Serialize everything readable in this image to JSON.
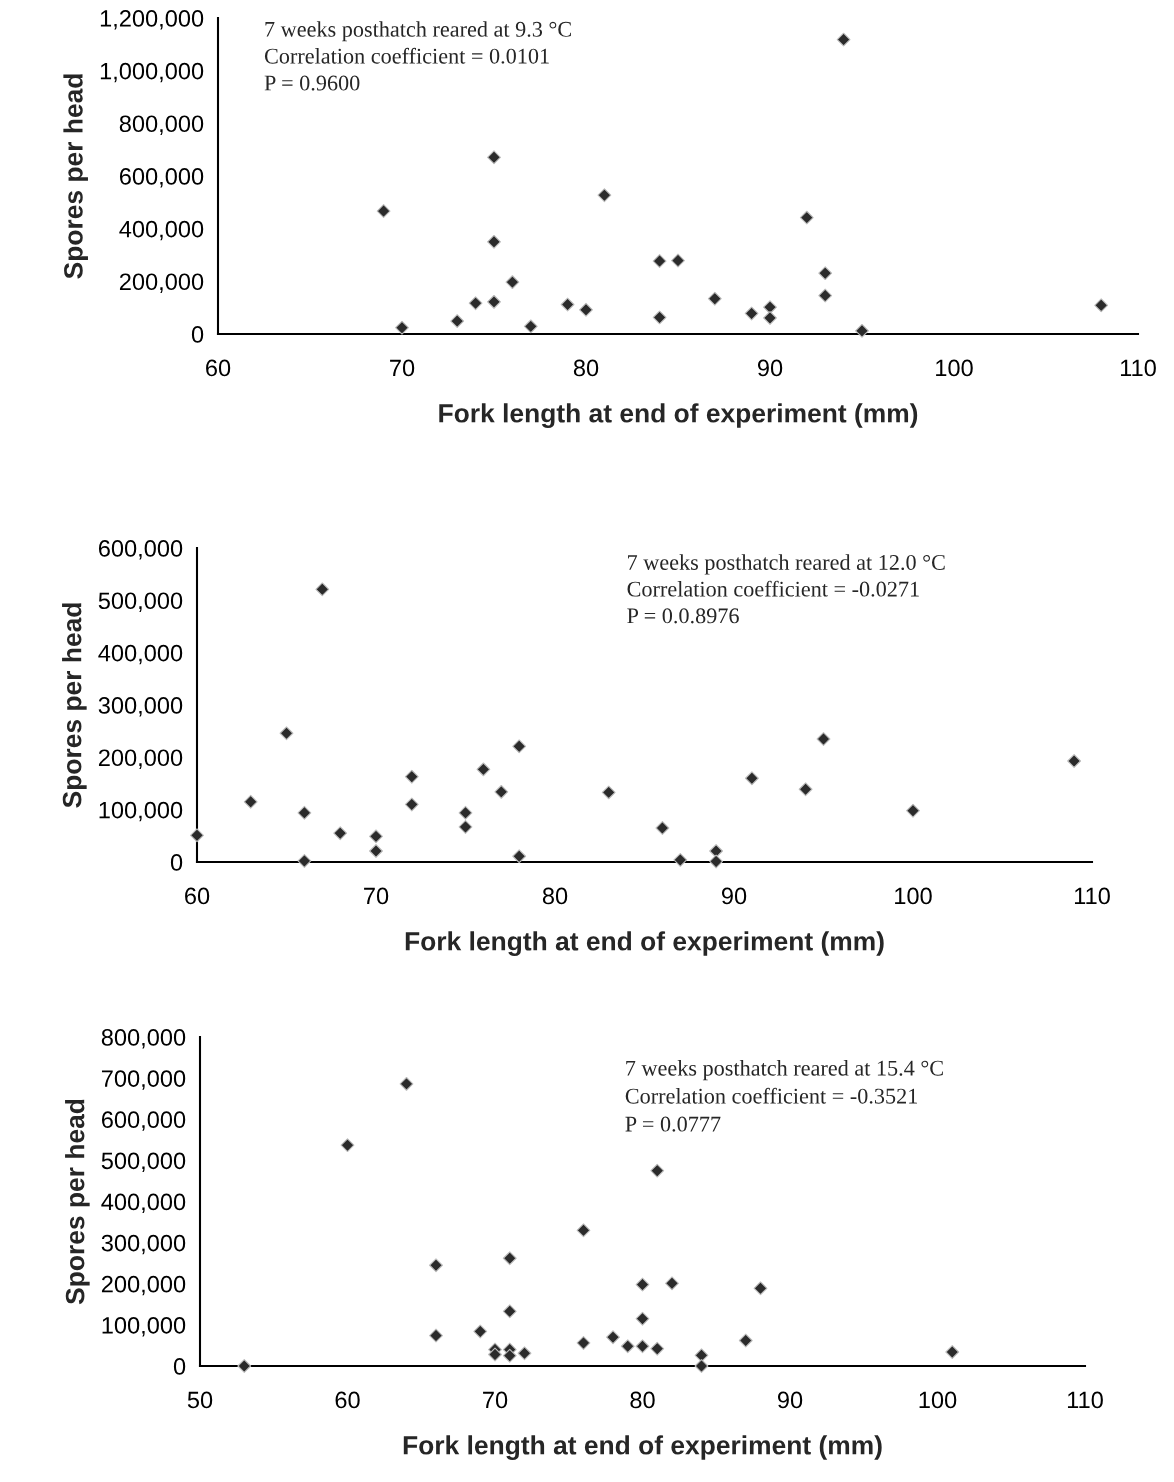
{
  "chart_data": [
    {
      "type": "scatter",
      "xlabel": "Fork length at end of experiment (mm)",
      "ylabel": "Spores per head",
      "marker": "diamond",
      "grid": false,
      "legend": false,
      "annotations": [
        "7 weeks posthatch reared at 9.3 °C",
        "Correlation coefficient = 0.0101",
        "P = 0.9600"
      ],
      "xlim": [
        60,
        110
      ],
      "xticks": [
        60,
        70,
        80,
        90,
        100,
        110
      ],
      "ylim": [
        0,
        1200000
      ],
      "yticks": [
        0,
        {
          "value": 200000,
          "label": "200,000"
        },
        {
          "value": 400000,
          "label": "400,000"
        },
        {
          "value": 600000,
          "label": "600,000"
        },
        {
          "value": 800000,
          "label": "800,000"
        },
        {
          "value": 1000000,
          "label": "1,000,000"
        },
        {
          "value": 1200000,
          "label": "1,200,000"
        }
      ],
      "series": [
        {
          "color": "#2b2b2b",
          "x": [
            69,
            70,
            73,
            74,
            75,
            75,
            75,
            76,
            77,
            79,
            80,
            81,
            84,
            84,
            85,
            87,
            89,
            90,
            90,
            92,
            93,
            93,
            94,
            95,
            108
          ],
          "values": [
            467000,
            24000,
            49000,
            117000,
            122000,
            350000,
            671000,
            197000,
            29000,
            112000,
            92000,
            527000,
            63000,
            277000,
            279000,
            134000,
            78000,
            102000,
            61000,
            442000,
            231000,
            146000,
            1118000,
            12000,
            109000
          ]
        }
      ]
    },
    {
      "type": "scatter",
      "xlabel": "Fork length at end of experiment (mm)",
      "ylabel": "Spores per head",
      "marker": "diamond",
      "grid": false,
      "legend": false,
      "annotations": [
        "7 weeks posthatch reared at 12.0 °C",
        "Correlation coefficient = -0.0271",
        "P = 0.0.8976"
      ],
      "xlim": [
        60,
        110
      ],
      "xticks": [
        60,
        70,
        80,
        90,
        100,
        110
      ],
      "ylim": [
        0,
        600000
      ],
      "yticks": [
        0,
        {
          "value": 100000,
          "label": "100,000"
        },
        {
          "value": 200000,
          "label": "200,000"
        },
        {
          "value": 300000,
          "label": "300,000"
        },
        {
          "value": 400000,
          "label": "400,000"
        },
        {
          "value": 500000,
          "label": "500,000"
        },
        {
          "value": 600000,
          "label": "600,000"
        }
      ],
      "series": [
        {
          "color": "#2b2b2b",
          "x": [
            60,
            63,
            65,
            66,
            66,
            67,
            68,
            70,
            70,
            72,
            72,
            75,
            75,
            76,
            77,
            78,
            78,
            83,
            86,
            87,
            89,
            89,
            91,
            94,
            95,
            100,
            109
          ],
          "values": [
            51000,
            115000,
            246000,
            94000,
            2000,
            521000,
            55000,
            49000,
            21000,
            163000,
            110000,
            94000,
            67000,
            177000,
            134000,
            221000,
            11000,
            133000,
            65000,
            4000,
            21000,
            1000,
            160000,
            139000,
            235000,
            98000,
            193000
          ]
        }
      ]
    },
    {
      "type": "scatter",
      "xlabel": "Fork length at end of experiment (mm)",
      "ylabel": "Spores per head",
      "marker": "diamond",
      "grid": false,
      "legend": false,
      "annotations": [
        "7 weeks posthatch reared at 15.4 °C",
        "Correlation coefficient = -0.3521",
        "P = 0.0777"
      ],
      "xlim": [
        50,
        110
      ],
      "xticks": [
        50,
        60,
        70,
        80,
        90,
        100,
        110
      ],
      "ylim": [
        0,
        800000
      ],
      "yticks": [
        0,
        {
          "value": 100000,
          "label": "100,000"
        },
        {
          "value": 200000,
          "label": "200,000"
        },
        {
          "value": 300000,
          "label": "300,000"
        },
        {
          "value": 400000,
          "label": "400,000"
        },
        {
          "value": 500000,
          "label": "500,000"
        },
        {
          "value": 600000,
          "label": "600,000"
        },
        {
          "value": 700000,
          "label": "700,000"
        },
        {
          "value": 800000,
          "label": "800,000"
        }
      ],
      "series": [
        {
          "color": "#2b2b2b",
          "x": [
            53,
            60,
            64,
            66,
            66,
            69,
            70,
            70,
            71,
            71,
            71,
            71,
            72,
            76,
            76,
            78,
            79,
            80,
            80,
            80,
            81,
            81,
            82,
            84,
            84,
            87,
            88,
            101
          ],
          "values": [
            0,
            537000,
            686000,
            245000,
            74000,
            84000,
            40000,
            28000,
            262000,
            133000,
            40000,
            25000,
            31000,
            330000,
            56000,
            70000,
            48000,
            115000,
            198000,
            48000,
            42000,
            475000,
            201000,
            26000,
            0,
            62000,
            189000,
            34000
          ]
        }
      ]
    }
  ]
}
